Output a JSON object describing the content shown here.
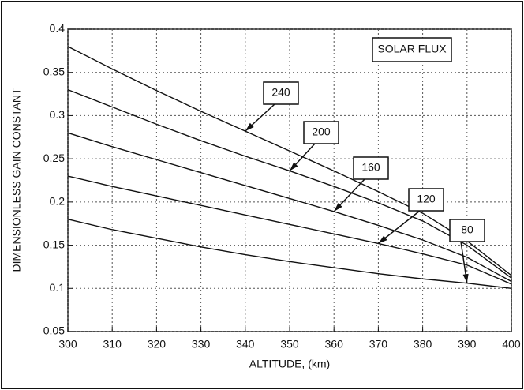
{
  "chart_data": {
    "type": "line",
    "x_label": "ALTITUDE, (km)",
    "y_label": "DIMENSIONLESS GAIN CONSTANT",
    "legend_title": "SOLAR FLUX",
    "x": [
      300,
      310,
      320,
      330,
      340,
      350,
      360,
      370,
      380,
      390,
      400
    ],
    "series": [
      {
        "name": "240",
        "color": "#111111",
        "values": [
          0.38,
          0.354,
          0.329,
          0.305,
          0.282,
          0.259,
          0.236,
          0.212,
          0.187,
          0.155,
          0.115
        ]
      },
      {
        "name": "200",
        "color": "#111111",
        "values": [
          0.33,
          0.31,
          0.29,
          0.271,
          0.253,
          0.236,
          0.218,
          0.199,
          0.178,
          0.15,
          0.112
        ]
      },
      {
        "name": "160",
        "color": "#111111",
        "values": [
          0.28,
          0.264,
          0.249,
          0.234,
          0.219,
          0.204,
          0.189,
          0.173,
          0.156,
          0.136,
          0.108
        ]
      },
      {
        "name": "120",
        "color": "#111111",
        "values": [
          0.23,
          0.218,
          0.207,
          0.196,
          0.185,
          0.174,
          0.163,
          0.152,
          0.14,
          0.127,
          0.105
        ]
      },
      {
        "name": "80",
        "color": "#111111",
        "values": [
          0.18,
          0.168,
          0.158,
          0.148,
          0.139,
          0.131,
          0.124,
          0.117,
          0.111,
          0.106,
          0.1
        ]
      }
    ],
    "xlim": [
      300,
      400
    ],
    "xticks": [
      300,
      310,
      320,
      330,
      340,
      350,
      360,
      370,
      380,
      390,
      400
    ],
    "ylim": [
      0.05,
      0.4
    ],
    "yticks": [
      0.05,
      0.1,
      0.15,
      0.2,
      0.25,
      0.3,
      0.35,
      0.4
    ],
    "grid": true
  }
}
